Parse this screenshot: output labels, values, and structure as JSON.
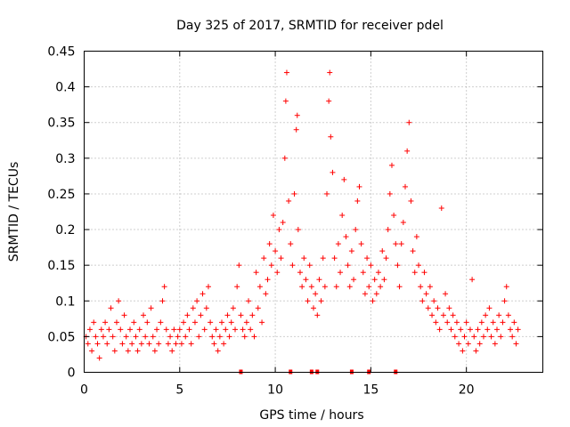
{
  "chart_data": {
    "type": "scatter",
    "title": "Day 325 of 2017, SRMTID for receiver pdel",
    "xlabel": "GPS time / hours",
    "ylabel": "SRMTID / TECUs",
    "xlim": [
      0,
      24
    ],
    "ylim": [
      0,
      0.45
    ],
    "x_ticks": [
      0,
      5,
      10,
      15,
      20
    ],
    "x_tick_labels": [
      "0",
      "5",
      "10",
      "15",
      "20"
    ],
    "y_ticks": [
      0,
      0.05,
      0.1,
      0.15,
      0.2,
      0.25,
      0.3,
      0.35,
      0.4,
      0.45
    ],
    "y_tick_labels": [
      "0",
      "0.05",
      "0.1",
      "0.15",
      "0.2",
      "0.25",
      "0.3",
      "0.35",
      "0.4",
      "0.45"
    ],
    "grid": true,
    "marker": "plus",
    "color": "#ff0000",
    "series": [
      {
        "name": "SRMTID",
        "points": [
          [
            0.1,
            0.05
          ],
          [
            0.2,
            0.04
          ],
          [
            0.3,
            0.06
          ],
          [
            0.4,
            0.03
          ],
          [
            0.5,
            0.07
          ],
          [
            0.6,
            0.05
          ],
          [
            0.7,
            0.04
          ],
          [
            0.8,
            0.02
          ],
          [
            0.9,
            0.06
          ],
          [
            1.0,
            0.05
          ],
          [
            1.1,
            0.07
          ],
          [
            1.2,
            0.04
          ],
          [
            1.3,
            0.06
          ],
          [
            1.4,
            0.09
          ],
          [
            1.5,
            0.05
          ],
          [
            1.6,
            0.03
          ],
          [
            1.7,
            0.07
          ],
          [
            1.8,
            0.1
          ],
          [
            1.9,
            0.06
          ],
          [
            2.0,
            0.04
          ],
          [
            2.1,
            0.08
          ],
          [
            2.2,
            0.05
          ],
          [
            2.3,
            0.03
          ],
          [
            2.4,
            0.06
          ],
          [
            2.5,
            0.04
          ],
          [
            2.6,
            0.07
          ],
          [
            2.7,
            0.05
          ],
          [
            2.8,
            0.03
          ],
          [
            2.9,
            0.06
          ],
          [
            3.0,
            0.04
          ],
          [
            3.1,
            0.08
          ],
          [
            3.2,
            0.05
          ],
          [
            3.3,
            0.07
          ],
          [
            3.4,
            0.04
          ],
          [
            3.5,
            0.09
          ],
          [
            3.6,
            0.05
          ],
          [
            3.7,
            0.03
          ],
          [
            3.8,
            0.06
          ],
          [
            3.9,
            0.04
          ],
          [
            4.0,
            0.07
          ],
          [
            4.1,
            0.1
          ],
          [
            4.2,
            0.12
          ],
          [
            4.3,
            0.06
          ],
          [
            4.4,
            0.04
          ],
          [
            4.5,
            0.05
          ],
          [
            4.6,
            0.03
          ],
          [
            4.7,
            0.06
          ],
          [
            4.8,
            0.04
          ],
          [
            4.9,
            0.05
          ],
          [
            5.0,
            0.06
          ],
          [
            5.1,
            0.04
          ],
          [
            5.2,
            0.07
          ],
          [
            5.3,
            0.05
          ],
          [
            5.4,
            0.08
          ],
          [
            5.5,
            0.06
          ],
          [
            5.6,
            0.04
          ],
          [
            5.7,
            0.09
          ],
          [
            5.8,
            0.07
          ],
          [
            5.9,
            0.1
          ],
          [
            6.0,
            0.05
          ],
          [
            6.1,
            0.08
          ],
          [
            6.2,
            0.11
          ],
          [
            6.3,
            0.06
          ],
          [
            6.4,
            0.09
          ],
          [
            6.5,
            0.12
          ],
          [
            6.6,
            0.07
          ],
          [
            6.7,
            0.05
          ],
          [
            6.8,
            0.04
          ],
          [
            6.9,
            0.06
          ],
          [
            7.0,
            0.03
          ],
          [
            7.1,
            0.05
          ],
          [
            7.2,
            0.07
          ],
          [
            7.3,
            0.04
          ],
          [
            7.4,
            0.06
          ],
          [
            7.5,
            0.08
          ],
          [
            7.6,
            0.05
          ],
          [
            7.7,
            0.07
          ],
          [
            7.8,
            0.09
          ],
          [
            7.9,
            0.06
          ],
          [
            8.0,
            0.12
          ],
          [
            8.1,
            0.15
          ],
          [
            8.2,
            0.08
          ],
          [
            8.3,
            0.06
          ],
          [
            8.4,
            0.05
          ],
          [
            8.5,
            0.07
          ],
          [
            8.6,
            0.1
          ],
          [
            8.7,
            0.06
          ],
          [
            8.8,
            0.08
          ],
          [
            8.9,
            0.05
          ],
          [
            9.0,
            0.14
          ],
          [
            9.1,
            0.09
          ],
          [
            9.2,
            0.12
          ],
          [
            9.3,
            0.07
          ],
          [
            9.4,
            0.16
          ],
          [
            9.5,
            0.11
          ],
          [
            9.6,
            0.13
          ],
          [
            9.7,
            0.18
          ],
          [
            9.8,
            0.15
          ],
          [
            9.9,
            0.22
          ],
          [
            10.0,
            0.17
          ],
          [
            10.1,
            0.14
          ],
          [
            10.2,
            0.2
          ],
          [
            10.3,
            0.16
          ],
          [
            10.4,
            0.21
          ],
          [
            10.5,
            0.3
          ],
          [
            10.55,
            0.38
          ],
          [
            10.6,
            0.42
          ],
          [
            10.7,
            0.24
          ],
          [
            10.8,
            0.18
          ],
          [
            10.9,
            0.15
          ],
          [
            11.0,
            0.25
          ],
          [
            11.1,
            0.34
          ],
          [
            11.15,
            0.36
          ],
          [
            11.2,
            0.2
          ],
          [
            11.3,
            0.14
          ],
          [
            11.4,
            0.12
          ],
          [
            11.5,
            0.16
          ],
          [
            11.6,
            0.13
          ],
          [
            11.7,
            0.1
          ],
          [
            11.8,
            0.15
          ],
          [
            11.9,
            0.12
          ],
          [
            12.0,
            0.09
          ],
          [
            12.1,
            0.11
          ],
          [
            12.2,
            0.08
          ],
          [
            12.3,
            0.13
          ],
          [
            12.4,
            0.1
          ],
          [
            12.5,
            0.16
          ],
          [
            12.6,
            0.12
          ],
          [
            12.7,
            0.25
          ],
          [
            12.8,
            0.38
          ],
          [
            12.85,
            0.42
          ],
          [
            12.9,
            0.33
          ],
          [
            13.0,
            0.28
          ],
          [
            13.1,
            0.16
          ],
          [
            13.2,
            0.12
          ],
          [
            13.3,
            0.18
          ],
          [
            13.4,
            0.14
          ],
          [
            13.5,
            0.22
          ],
          [
            13.6,
            0.27
          ],
          [
            13.7,
            0.19
          ],
          [
            13.8,
            0.15
          ],
          [
            13.9,
            0.12
          ],
          [
            14.0,
            0.17
          ],
          [
            14.1,
            0.13
          ],
          [
            14.2,
            0.2
          ],
          [
            14.3,
            0.24
          ],
          [
            14.4,
            0.26
          ],
          [
            14.5,
            0.18
          ],
          [
            14.6,
            0.14
          ],
          [
            14.7,
            0.11
          ],
          [
            14.8,
            0.16
          ],
          [
            14.9,
            0.12
          ],
          [
            15.0,
            0.15
          ],
          [
            15.1,
            0.1
          ],
          [
            15.2,
            0.13
          ],
          [
            15.3,
            0.11
          ],
          [
            15.4,
            0.14
          ],
          [
            15.5,
            0.12
          ],
          [
            15.6,
            0.17
          ],
          [
            15.7,
            0.13
          ],
          [
            15.8,
            0.16
          ],
          [
            15.9,
            0.2
          ],
          [
            16.0,
            0.25
          ],
          [
            16.1,
            0.29
          ],
          [
            16.2,
            0.22
          ],
          [
            16.3,
            0.18
          ],
          [
            16.4,
            0.15
          ],
          [
            16.5,
            0.12
          ],
          [
            16.6,
            0.18
          ],
          [
            16.7,
            0.21
          ],
          [
            16.8,
            0.26
          ],
          [
            16.9,
            0.31
          ],
          [
            17.0,
            0.35
          ],
          [
            17.1,
            0.24
          ],
          [
            17.2,
            0.17
          ],
          [
            17.3,
            0.14
          ],
          [
            17.4,
            0.19
          ],
          [
            17.5,
            0.15
          ],
          [
            17.6,
            0.12
          ],
          [
            17.7,
            0.1
          ],
          [
            17.8,
            0.14
          ],
          [
            17.9,
            0.11
          ],
          [
            18.0,
            0.09
          ],
          [
            18.1,
            0.12
          ],
          [
            18.2,
            0.08
          ],
          [
            18.3,
            0.1
          ],
          [
            18.4,
            0.07
          ],
          [
            18.5,
            0.09
          ],
          [
            18.6,
            0.06
          ],
          [
            18.7,
            0.23
          ],
          [
            18.8,
            0.08
          ],
          [
            18.9,
            0.11
          ],
          [
            19.0,
            0.07
          ],
          [
            19.1,
            0.09
          ],
          [
            19.2,
            0.06
          ],
          [
            19.3,
            0.08
          ],
          [
            19.4,
            0.05
          ],
          [
            19.5,
            0.07
          ],
          [
            19.6,
            0.04
          ],
          [
            19.7,
            0.06
          ],
          [
            19.8,
            0.03
          ],
          [
            19.9,
            0.05
          ],
          [
            20.0,
            0.07
          ],
          [
            20.1,
            0.04
          ],
          [
            20.2,
            0.06
          ],
          [
            20.3,
            0.13
          ],
          [
            20.4,
            0.05
          ],
          [
            20.5,
            0.03
          ],
          [
            20.6,
            0.06
          ],
          [
            20.7,
            0.04
          ],
          [
            20.8,
            0.07
          ],
          [
            20.9,
            0.05
          ],
          [
            21.0,
            0.08
          ],
          [
            21.1,
            0.06
          ],
          [
            21.2,
            0.09
          ],
          [
            21.3,
            0.05
          ],
          [
            21.4,
            0.07
          ],
          [
            21.5,
            0.04
          ],
          [
            21.6,
            0.06
          ],
          [
            21.7,
            0.08
          ],
          [
            21.8,
            0.05
          ],
          [
            21.9,
            0.07
          ],
          [
            22.0,
            0.1
          ],
          [
            22.1,
            0.12
          ],
          [
            22.2,
            0.08
          ],
          [
            22.3,
            0.06
          ],
          [
            22.4,
            0.05
          ],
          [
            22.5,
            0.07
          ],
          [
            22.6,
            0.04
          ],
          [
            22.7,
            0.06
          ]
        ]
      }
    ],
    "zero_markers_x": [
      8.2,
      10.8,
      11.9,
      12.2,
      14.0,
      14.9,
      16.3
    ]
  }
}
